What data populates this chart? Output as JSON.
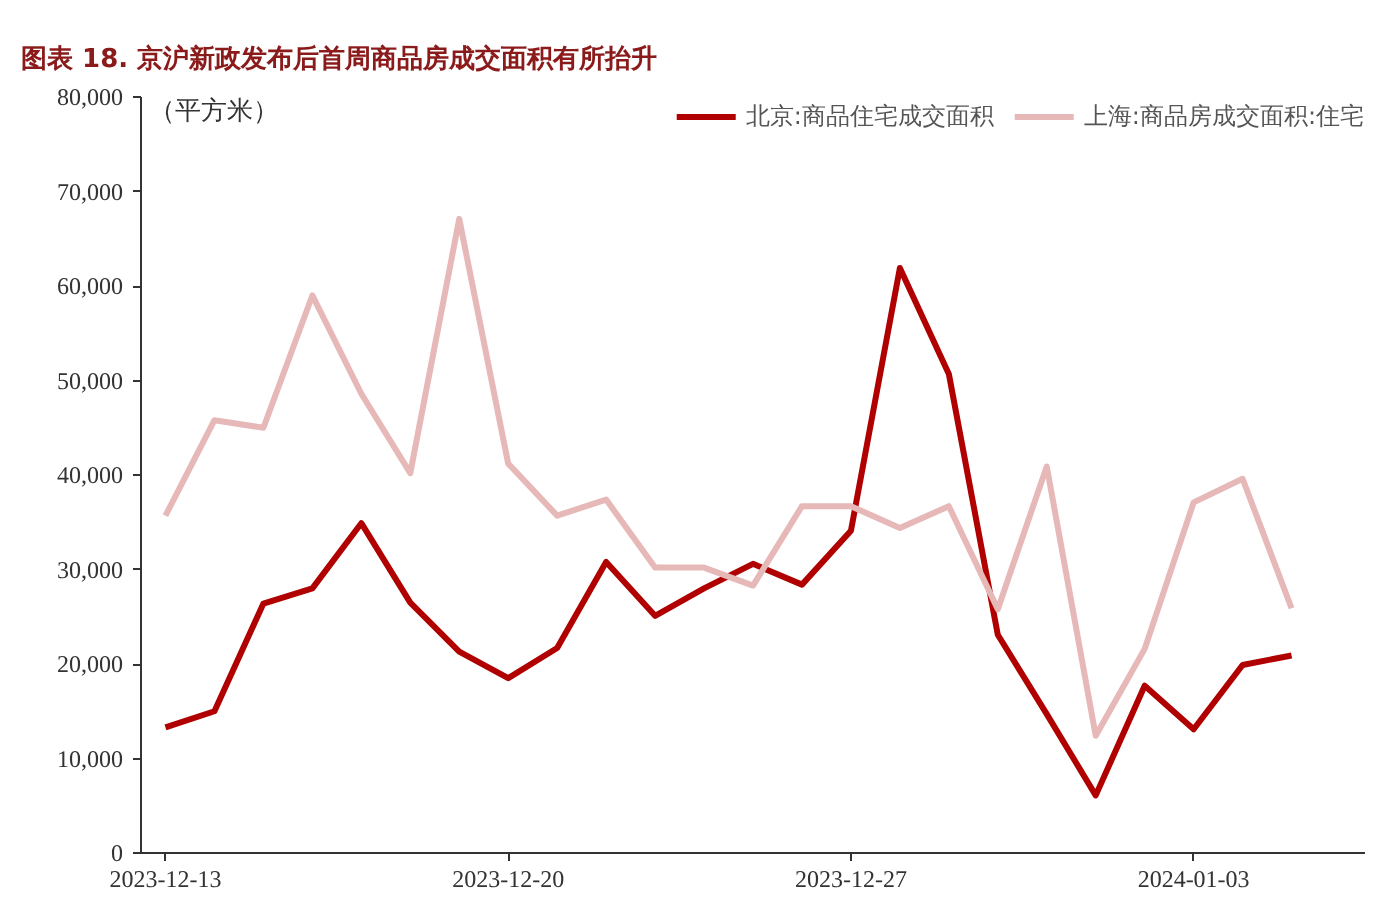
{
  "chart_data": {
    "type": "line",
    "title": "图表 18. 京沪新政发布后首周商品房成交面积有所抬升",
    "ylabel": "（平方米）",
    "x": [
      "2023-12-13",
      "2023-12-14",
      "2023-12-15",
      "2023-12-16",
      "2023-12-17",
      "2023-12-18",
      "2023-12-19",
      "2023-12-20",
      "2023-12-21",
      "2023-12-22",
      "2023-12-23",
      "2023-12-24",
      "2023-12-25",
      "2023-12-26",
      "2023-12-27",
      "2023-12-28",
      "2023-12-29",
      "2023-12-30",
      "2023-12-31",
      "2024-01-01",
      "2024-01-02",
      "2024-01-03",
      "2024-01-04",
      "2024-01-05"
    ],
    "series": [
      {
        "name": "北京:商品住宅成交面积",
        "color": "#b00000",
        "values": [
          13300,
          15000,
          26400,
          28000,
          34900,
          26500,
          21300,
          18500,
          21700,
          30800,
          25100,
          28000,
          30600,
          28400,
          34100,
          61900,
          50700,
          23100,
          14700,
          6100,
          17700,
          13100,
          19900,
          20900
        ]
      },
      {
        "name": "上海:商品房成交面积:住宅",
        "color": "#e6b8b7",
        "values": [
          35700,
          45800,
          45000,
          59000,
          48600,
          40200,
          67100,
          41200,
          35700,
          37400,
          30200,
          30200,
          28300,
          36700,
          36700,
          34400,
          36700,
          25800,
          40900,
          12400,
          21600,
          37100,
          39600,
          25900
        ]
      }
    ],
    "xlim": [
      "2023-12-12T12:00",
      "2024-01-06T12:00"
    ],
    "xticks": [
      "2023-12-13",
      "2023-12-20",
      "2023-12-27",
      "2024-01-03"
    ],
    "ylim": [
      0,
      80000
    ],
    "yticks": [
      {
        "value": 0,
        "label": "0"
      },
      {
        "value": 10000,
        "label": "10,000"
      },
      {
        "value": 20000,
        "label": "20,000"
      },
      {
        "value": 30000,
        "label": "30,000"
      },
      {
        "value": 40000,
        "label": "40,000"
      },
      {
        "value": 50000,
        "label": "50,000"
      },
      {
        "value": 60000,
        "label": "60,000"
      },
      {
        "value": 70000,
        "label": "70,000"
      },
      {
        "value": 80000,
        "label": "80,000"
      }
    ],
    "grid": false,
    "legend": "top right",
    "marker": "none",
    "line_style": "solid"
  }
}
